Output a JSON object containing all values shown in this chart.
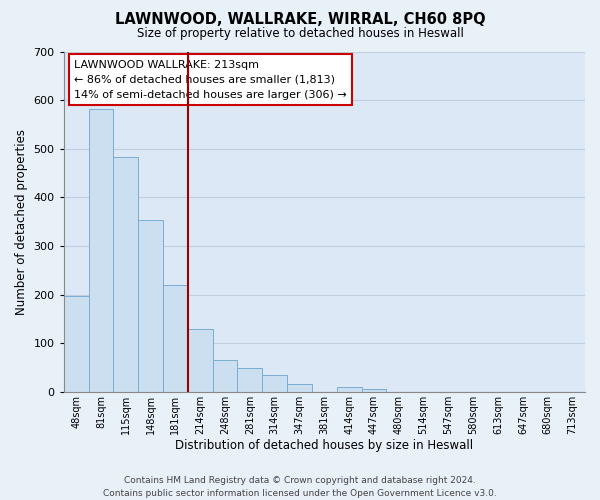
{
  "title": "LAWNWOOD, WALLRAKE, WIRRAL, CH60 8PQ",
  "subtitle": "Size of property relative to detached houses in Heswall",
  "xlabel": "Distribution of detached houses by size in Heswall",
  "ylabel": "Number of detached properties",
  "bar_labels": [
    "48sqm",
    "81sqm",
    "115sqm",
    "148sqm",
    "181sqm",
    "214sqm",
    "248sqm",
    "281sqm",
    "314sqm",
    "347sqm",
    "381sqm",
    "414sqm",
    "447sqm",
    "480sqm",
    "514sqm",
    "547sqm",
    "580sqm",
    "613sqm",
    "647sqm",
    "680sqm",
    "713sqm"
  ],
  "bar_values": [
    197,
    581,
    484,
    354,
    220,
    130,
    65,
    48,
    34,
    16,
    0,
    10,
    6,
    0,
    0,
    0,
    0,
    0,
    0,
    0,
    0
  ],
  "bar_color": "#ccdff0",
  "bar_edge_color": "#7aadd4",
  "bg_color": "#e8f0f8",
  "ylim": [
    0,
    700
  ],
  "yticks": [
    0,
    100,
    200,
    300,
    400,
    500,
    600,
    700
  ],
  "property_line_color": "#990000",
  "annotation_text": "LAWNWOOD WALLRAKE: 213sqm\n← 86% of detached houses are smaller (1,813)\n14% of semi-detached houses are larger (306) →",
  "annotation_box_facecolor": "#ffffff",
  "annotation_box_edgecolor": "#cc0000",
  "footer_line1": "Contains HM Land Registry data © Crown copyright and database right 2024.",
  "footer_line2": "Contains public sector information licensed under the Open Government Licence v3.0.",
  "plot_bg_color": "#dce8f5",
  "grid_color": "#c0cfe0"
}
